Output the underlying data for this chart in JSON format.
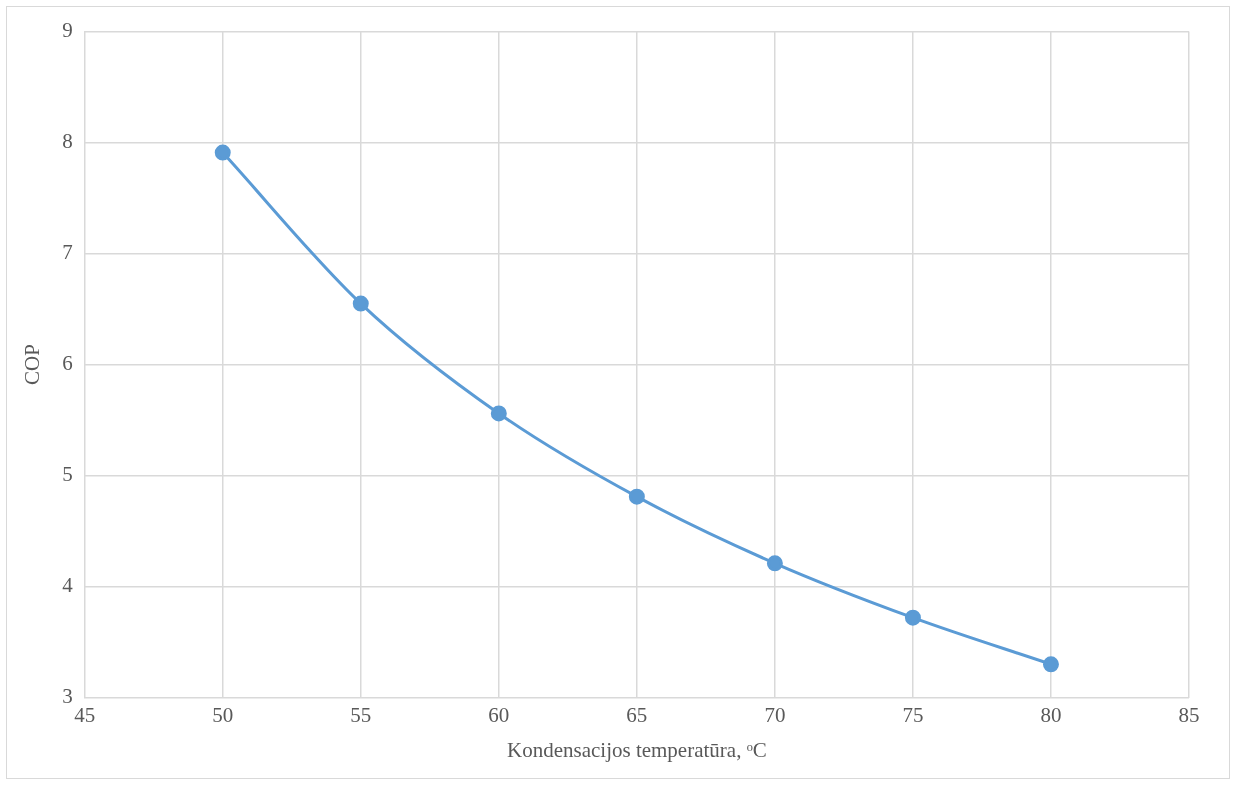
{
  "chart_data": {
    "type": "line",
    "xlabel": "Kondensacijos temperatūra, ᵒC",
    "ylabel": "COP",
    "x": [
      50,
      55,
      60,
      65,
      70,
      75,
      80
    ],
    "series": [
      {
        "color": "#5b9bd5",
        "values": [
          7.91,
          6.55,
          5.56,
          4.81,
          4.21,
          3.72,
          3.3
        ]
      }
    ],
    "xlim": [
      45,
      85
    ],
    "xticks": [
      45,
      50,
      55,
      60,
      65,
      70,
      75,
      80,
      85
    ],
    "ylim": [
      3,
      9
    ],
    "yticks": [
      3,
      4,
      5,
      6,
      7,
      8,
      9
    ],
    "grid": true,
    "legend": false,
    "marker": "circle",
    "line_style": "solid"
  }
}
